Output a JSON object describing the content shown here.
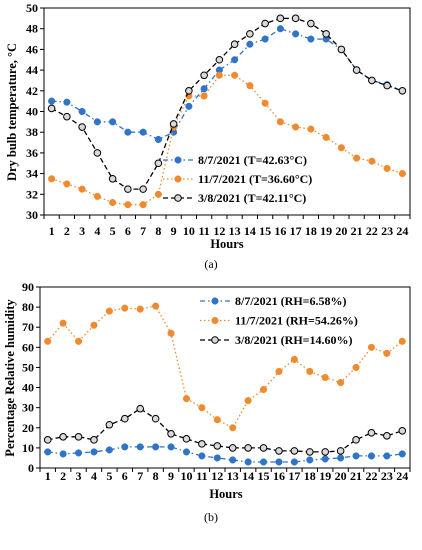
{
  "chart_data": [
    {
      "type": "line",
      "caption": "(a)",
      "xlabel": "Hours",
      "ylabel": "Dry bulb temperature, °C",
      "x": [
        1,
        2,
        3,
        4,
        5,
        6,
        7,
        8,
        9,
        10,
        11,
        12,
        13,
        14,
        15,
        16,
        17,
        18,
        19,
        20,
        21,
        22,
        23,
        24
      ],
      "ylim": [
        30,
        50
      ],
      "yticks": [
        30,
        32,
        34,
        36,
        38,
        40,
        42,
        44,
        46,
        48,
        50
      ],
      "grid": false,
      "legend_position": "center-right",
      "series": [
        {
          "name": "8/7/2021 (T=42.63°C)",
          "color": "#2f74c6",
          "line_style": "dashdot",
          "marker": "filled-circle",
          "values": [
            41.0,
            40.9,
            40.0,
            39.0,
            39.0,
            38.0,
            38.0,
            37.3,
            38.0,
            40.5,
            42.2,
            44.0,
            45.0,
            46.5,
            47.0,
            48.0,
            47.5,
            47.0,
            47.0,
            46.0,
            44.0,
            43.0,
            42.6,
            42.0
          ]
        },
        {
          "name": "11/7/2021 (T=36.60°C)",
          "color": "#ef8a2f",
          "line_style": "dotted",
          "marker": "filled-circle",
          "values": [
            33.5,
            33.0,
            32.5,
            31.8,
            31.2,
            31.0,
            31.0,
            32.0,
            38.5,
            41.5,
            41.5,
            43.5,
            43.5,
            42.5,
            40.8,
            39.0,
            38.5,
            38.3,
            37.5,
            36.5,
            35.5,
            35.2,
            34.5,
            34.0
          ]
        },
        {
          "name": "3/8/2021 (T=42.11°C)",
          "color": "#000000",
          "line_style": "dashed",
          "marker": "hollow-circle",
          "marker_fill": "#d9d9d9",
          "values": [
            40.3,
            39.5,
            38.5,
            36.0,
            33.5,
            32.5,
            32.5,
            35.0,
            38.8,
            42.0,
            43.5,
            45.0,
            46.5,
            47.5,
            48.5,
            49.0,
            49.0,
            48.5,
            47.5,
            46.0,
            44.0,
            43.0,
            42.5,
            42.0
          ]
        }
      ]
    },
    {
      "type": "line",
      "caption": "(b)",
      "xlabel": "Hours",
      "ylabel": "Percentage Relative humidity",
      "x": [
        1,
        2,
        3,
        4,
        5,
        6,
        7,
        8,
        9,
        10,
        11,
        12,
        13,
        14,
        15,
        16,
        17,
        18,
        19,
        20,
        21,
        22,
        23,
        24
      ],
      "ylim": [
        0,
        90
      ],
      "yticks": [
        0,
        10,
        20,
        30,
        40,
        50,
        60,
        70,
        80,
        90
      ],
      "grid": false,
      "legend_position": "top-right",
      "series": [
        {
          "name": "8/7/2021 (RH=6.58%)",
          "color": "#2f74c6",
          "line_style": "dashdot",
          "marker": "filled-circle",
          "values": [
            8,
            7,
            7.5,
            8,
            9,
            10.5,
            10.5,
            10.5,
            10.5,
            8,
            6,
            5,
            4,
            3,
            3,
            3,
            3,
            4,
            4.5,
            5,
            6,
            6,
            6,
            7
          ]
        },
        {
          "name": "11/7/2021 (RH=54.26%)",
          "color": "#ef8a2f",
          "line_style": "dotted",
          "marker": "filled-circle",
          "values": [
            63,
            72,
            63,
            71,
            78,
            79.5,
            79,
            80.5,
            67,
            34.5,
            30,
            24,
            20,
            33.5,
            39,
            48,
            54,
            48,
            45,
            42.5,
            50,
            60,
            57,
            63
          ]
        },
        {
          "name": "3/8/2021 (RH=14.60%)",
          "color": "#000000",
          "line_style": "dashed",
          "marker": "hollow-circle",
          "marker_fill": "#d9d9d9",
          "values": [
            14,
            15.5,
            15.5,
            14,
            21.5,
            24.5,
            29.5,
            24.5,
            17,
            14.5,
            12,
            11,
            10,
            10,
            10,
            8.5,
            8.5,
            8,
            8,
            8.5,
            14,
            17.5,
            16,
            18.5
          ]
        }
      ]
    }
  ]
}
